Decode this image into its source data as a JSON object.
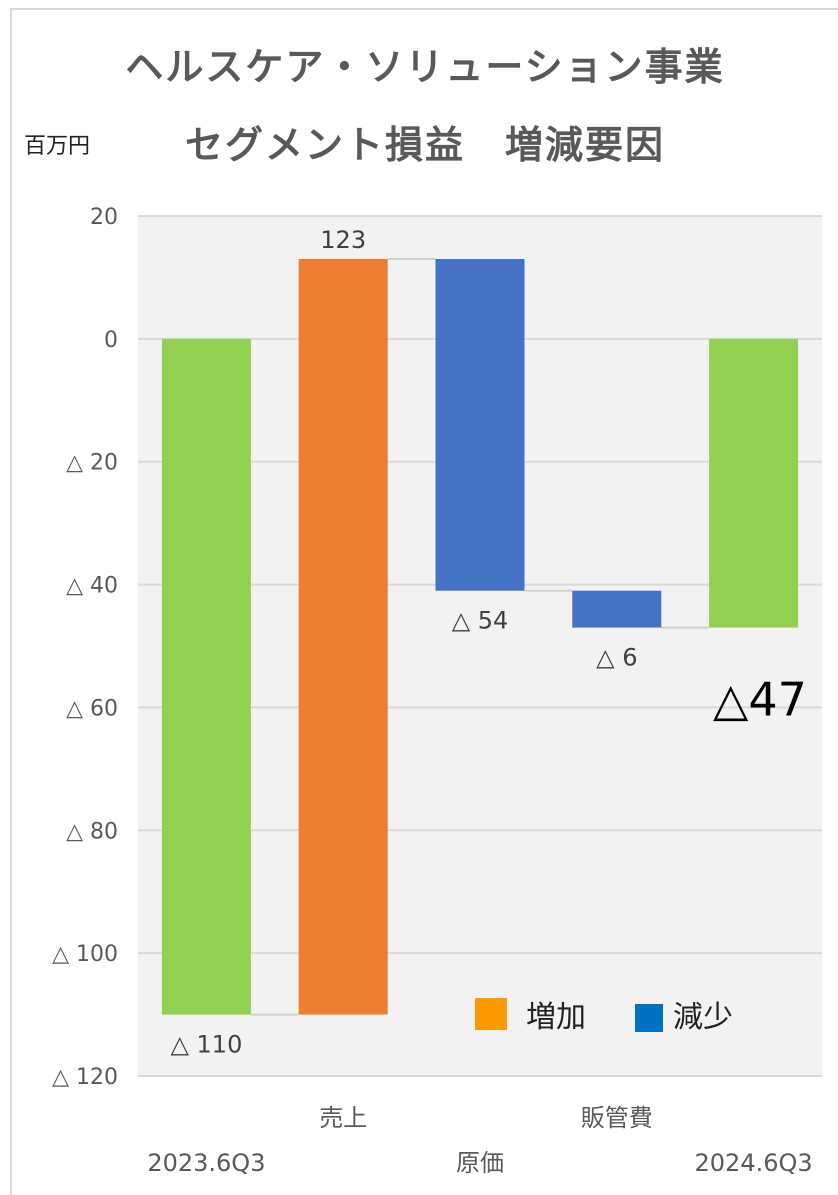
{
  "chart_data": {
    "type": "bar",
    "subtype": "waterfall",
    "title_line1": "ヘルスケア・ソリューション事業",
    "title_line2": "セグメント損益　増減要因",
    "unit_label": "百万円",
    "y_axis": {
      "min": -120,
      "max": 20,
      "ticks": [
        20,
        0,
        -20,
        -40,
        -60,
        -80,
        -100,
        -120
      ],
      "tick_labels": [
        "20",
        "0",
        "△ 20",
        "△ 40",
        "△ 60",
        "△ 80",
        "△ 100",
        "△ 120"
      ]
    },
    "grid": true,
    "categories": [
      "2023.6Q3",
      "売上",
      "原価",
      "販管費",
      "2024.6Q3"
    ],
    "category_row": [
      1,
      0,
      1,
      0,
      1
    ],
    "bars": [
      {
        "category": "2023.6Q3",
        "start": 0,
        "end": -110,
        "kind": "total",
        "label": "△ 110"
      },
      {
        "category": "売上",
        "start": -110,
        "end": 13,
        "kind": "increase",
        "label": "123"
      },
      {
        "category": "原価",
        "start": 13,
        "end": -41,
        "kind": "decrease",
        "label": "△ 54"
      },
      {
        "category": "販管費",
        "start": -41,
        "end": -47,
        "kind": "decrease",
        "label": "△ 6"
      },
      {
        "category": "2024.6Q3",
        "start": 0,
        "end": -47,
        "kind": "total",
        "label": "△47"
      }
    ],
    "colors": {
      "total": "#92d050",
      "increase": "#ed7d31",
      "decrease": "#4472c4",
      "plot_bg": "#f2f2f2",
      "grid": "#d9d9d9",
      "legend_increase": "#ff9900",
      "legend_decrease": "#0070c0"
    },
    "legend": {
      "position": "bottom-right",
      "items": [
        {
          "name": "増加",
          "color_key": "legend_increase"
        },
        {
          "name": "減少",
          "color_key": "legend_decrease"
        }
      ]
    }
  }
}
